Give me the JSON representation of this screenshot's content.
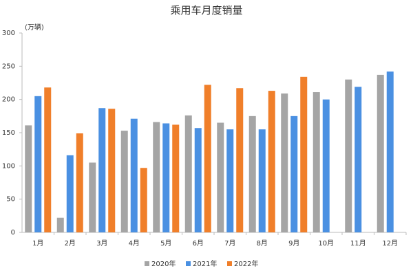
{
  "chart_data": {
    "type": "bar",
    "title": "乘用车月度销量",
    "ylabel": "(万辆)",
    "categories": [
      "1月",
      "2月",
      "3月",
      "4月",
      "5月",
      "6月",
      "7月",
      "8月",
      "9月",
      "10月",
      "11月",
      "12月"
    ],
    "series": [
      {
        "name": "2020年",
        "color": "#a5a5a5",
        "values": [
          161,
          22,
          105,
          153,
          166,
          176,
          165,
          175,
          209,
          211,
          230,
          237
        ]
      },
      {
        "name": "2021年",
        "color": "#4a90e2",
        "values": [
          205,
          116,
          187,
          171,
          164,
          157,
          155,
          155,
          175,
          200,
          219,
          242
        ]
      },
      {
        "name": "2022年",
        "color": "#f07f2a",
        "values": [
          218,
          149,
          186,
          97,
          162,
          222,
          217,
          213,
          234,
          null,
          null,
          null
        ]
      }
    ],
    "ylim": [
      0,
      300
    ],
    "yticks": [
      0,
      50,
      100,
      150,
      200,
      250,
      300
    ],
    "grid": false
  }
}
